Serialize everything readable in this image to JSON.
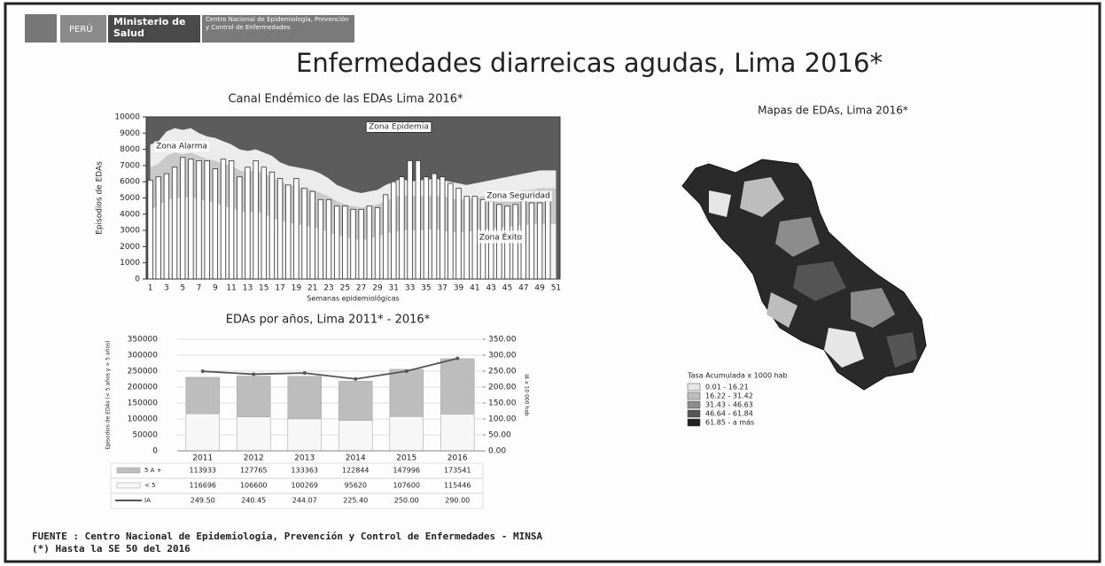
{
  "header": {
    "country": "PERÚ",
    "ministry": "Ministerio de Salud",
    "center": "Centro Nacional de Epidemiología, Prevención y Control de Enfermedades"
  },
  "title": "Enfermedades diarreicas agudas, Lima 2016*",
  "chart_data": [
    {
      "type": "bar",
      "title": "Canal Endémico de las EDAs Lima 2016*",
      "ylabel": "Episodios de EDAs",
      "xlabel": "Semanas epidemiológicas",
      "categories": [
        1,
        null,
        3,
        null,
        5,
        null,
        7,
        null,
        9,
        null,
        11,
        null,
        13,
        null,
        15,
        null,
        17,
        null,
        19,
        null,
        21,
        null,
        23,
        null,
        25,
        null,
        27,
        null,
        29,
        null,
        31,
        null,
        33,
        null,
        35,
        null,
        37,
        null,
        39,
        null,
        41,
        null,
        43,
        null,
        45,
        null,
        47,
        null,
        49,
        null,
        51
      ],
      "values": [
        6100,
        6300,
        6500,
        6900,
        7500,
        7400,
        7300,
        7300,
        6800,
        7400,
        7300,
        6300,
        6900,
        7300,
        6900,
        6600,
        6200,
        5800,
        6200,
        5600,
        5400,
        4900,
        4900,
        4500,
        4500,
        4300,
        4300,
        4500,
        4400,
        5200,
        6000,
        6300,
        7300,
        7300,
        6300,
        6500,
        6300,
        5900,
        5600,
        5100,
        5100,
        4900,
        4800,
        4600,
        4500,
        4600,
        4800,
        4700,
        4700,
        4800,
        null
      ],
      "color": "#ffffff",
      "annotation": "Zona Epidemia",
      "series": [
        {
          "name": "Zona Alarma",
          "color": "#ececec",
          "values": [
            8300,
            8500,
            9100,
            9300,
            9200,
            9300,
            9000,
            8800,
            8700,
            8500,
            8300,
            8000,
            7900,
            8000,
            7800,
            7600,
            7200,
            7000,
            6900,
            6800,
            6700,
            6500,
            6200,
            5800,
            5600,
            5400,
            5300,
            5400,
            5500,
            5800,
            6000,
            6200,
            6000,
            6100,
            6100,
            6200,
            6100,
            6000,
            5900,
            5800,
            5900,
            6000,
            6100,
            6200,
            6300,
            6400,
            6500,
            6600,
            6700,
            6700,
            6700
          ]
        },
        {
          "name": "Zona Seguridad",
          "color": "#c9c9c9",
          "values": [
            6900,
            7100,
            7600,
            7800,
            7700,
            7800,
            7600,
            7400,
            7300,
            7100,
            7000,
            6700,
            6600,
            6700,
            6500,
            6300,
            6000,
            5800,
            5700,
            5600,
            5500,
            5300,
            5100,
            4800,
            4600,
            4500,
            4400,
            4500,
            4600,
            4800,
            5000,
            5200,
            5100,
            5100,
            5100,
            5200,
            5100,
            5000,
            4900,
            4900,
            5000,
            5100,
            5200,
            5300,
            5300,
            5400,
            5500,
            5500,
            5600,
            5600,
            5600
          ]
        },
        {
          "name": "Zona Éxito",
          "color": "#f2f2f2",
          "values": [
            4300,
            4500,
            4900,
            5000,
            5000,
            5100,
            4900,
            4800,
            4700,
            4500,
            4400,
            4200,
            4100,
            4200,
            4000,
            3800,
            3600,
            3500,
            3400,
            3300,
            3200,
            3100,
            2900,
            2700,
            2600,
            2500,
            2400,
            2500,
            2600,
            2800,
            2900,
            3000,
            3000,
            3000,
            3000,
            3100,
            3000,
            2900,
            2900,
            2900,
            3000,
            3100,
            3100,
            3200,
            3200,
            3300,
            3300,
            3400,
            3400,
            3400,
            3400
          ]
        }
      ],
      "background": "#5c5c5c",
      "ylim": [
        0,
        10000
      ],
      "yticks": [
        0,
        1000,
        2000,
        3000,
        4000,
        5000,
        6000,
        7000,
        8000,
        9000,
        10000
      ]
    },
    {
      "type": "combo",
      "title": "EDAs por años, Lima 2011* - 2016*",
      "ylabel": "Episodios de EDAs (< 5 años y > 5 años)",
      "y2label": "IA x 10 000 hab",
      "categories": [
        2011,
        2012,
        2013,
        2014,
        2015,
        2016
      ],
      "series": [
        {
          "name": "5 A +",
          "color": "#bdbdbd",
          "values": [
            113933,
            127765,
            133363,
            122844,
            147996,
            173541
          ]
        },
        {
          "name": "< 5",
          "color": "#f7f7f7",
          "values": [
            116696,
            106600,
            100269,
            95620,
            107600,
            115446
          ]
        },
        {
          "name": "IA",
          "color": "#555555",
          "axis": "y2",
          "values": [
            249.5,
            240.45,
            244.07,
            225.4,
            250,
            290
          ],
          "value_labels": [
            "249.50",
            "240.45",
            "244.07",
            "225.40",
            "250.00",
            "290.00"
          ]
        }
      ],
      "ylim": [
        0,
        350000
      ],
      "yticks": [
        0,
        50000,
        100000,
        150000,
        200000,
        250000,
        300000,
        350000
      ],
      "y2lim": [
        0,
        350
      ],
      "y2ticks": [
        {
          "value": 0,
          "label": "0.00"
        },
        {
          "value": 50,
          "label": "50.00"
        },
        {
          "value": 100,
          "label": "100.00"
        },
        {
          "value": 150,
          "label": "150.00"
        },
        {
          "value": 200,
          "label": "200.00"
        },
        {
          "value": 250,
          "label": "250.00"
        },
        {
          "value": 300,
          "label": "300.00"
        },
        {
          "value": 350,
          "label": "350.00"
        }
      ],
      "grid": true
    }
  ],
  "map": {
    "title": "Mapas de EDAs, Lima 2016*",
    "legend_title": "Tasa Acumulada x 1000 hab",
    "legend": [
      {
        "label": "0.01 - 16.21",
        "color": "#e6e6e6"
      },
      {
        "label": "16.22 - 31.42",
        "color": "#bdbdbd"
      },
      {
        "label": "31.43 - 46.63",
        "color": "#8c8c8c"
      },
      {
        "label": "46.64 - 61.84",
        "color": "#555555"
      },
      {
        "label": "61.85 - a más",
        "color": "#222222"
      }
    ]
  },
  "footer": {
    "source": "FUENTE : Centro Nacional de Epidemiologia, Prevención y Control de Enfermedades - MINSA",
    "note": "(*) Hasta la SE 50 del 2016"
  }
}
